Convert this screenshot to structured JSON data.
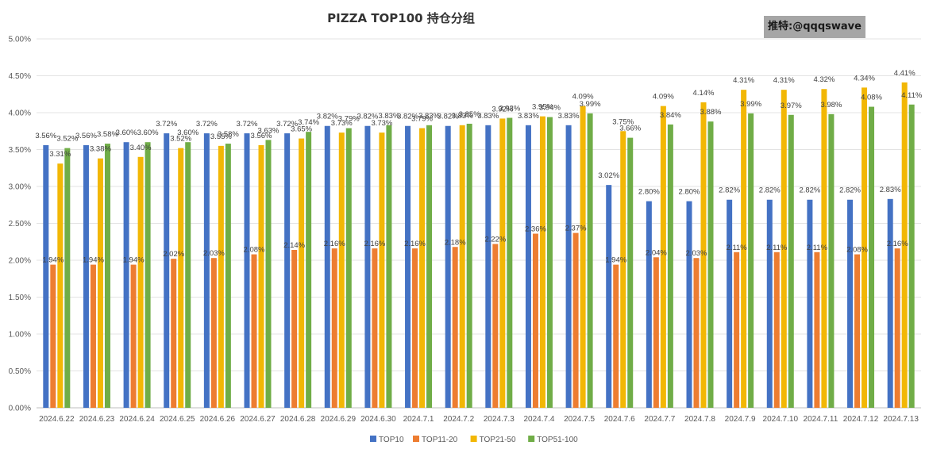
{
  "watermark": "推特:@qqqswave",
  "chart_data": {
    "type": "bar",
    "title": "PIZZA TOP100 持仓分组",
    "xlabel": "",
    "ylabel": "",
    "ylim": [
      0,
      5
    ],
    "yticks": [
      "0.00%",
      "0.50%",
      "1.00%",
      "1.50%",
      "2.00%",
      "2.50%",
      "3.00%",
      "3.50%",
      "4.00%",
      "4.50%",
      "5.00%"
    ],
    "grid": true,
    "legend_position": "bottom",
    "categories": [
      "2024.6.22",
      "2024.6.23",
      "2024.6.24",
      "2024.6.25",
      "2024.6.26",
      "2024.6.27",
      "2024.6.28",
      "2024.6.29",
      "2024.6.30",
      "2024.7.1",
      "2024.7.2",
      "2024.7.3",
      "2024.7.4",
      "2024.7.5",
      "2024.7.6",
      "2024.7.7",
      "2024.7.8",
      "2024.7.9",
      "2024.7.10",
      "2024.7.11",
      "2024.7.12",
      "2024.7.13"
    ],
    "series": [
      {
        "name": "TOP10",
        "color": "#4472C4",
        "values": [
          3.56,
          3.56,
          3.6,
          3.72,
          3.72,
          3.72,
          3.72,
          3.82,
          3.82,
          3.82,
          3.82,
          3.83,
          3.83,
          3.83,
          3.02,
          2.8,
          2.8,
          2.82,
          2.82,
          2.82,
          2.82,
          2.83
        ],
        "labels": [
          "3.56%",
          "3.56%",
          "3.60%",
          "3.72%",
          "3.72%",
          "3.72%",
          "3.72%",
          "3.82%",
          "3.82%",
          "3.82%",
          "3.82%",
          "3.83%",
          "3.83%",
          "3.83%",
          "3.02%",
          "2.80%",
          "2.80%",
          "2.82%",
          "2.82%",
          "2.82%",
          "2.82%",
          "2.83%"
        ]
      },
      {
        "name": "TOP11-20",
        "color": "#ED7D31",
        "values": [
          1.94,
          1.94,
          1.94,
          2.02,
          2.03,
          2.08,
          2.14,
          2.16,
          2.16,
          2.16,
          2.18,
          2.22,
          2.36,
          2.37,
          1.94,
          2.04,
          2.03,
          2.11,
          2.11,
          2.11,
          2.08,
          2.16
        ],
        "labels": [
          "1.94%",
          "1.94%",
          "1.94%",
          "2.02%",
          "2.03%",
          "2.08%",
          "2.14%",
          "2.16%",
          "2.16%",
          "2.16%",
          "2.18%",
          "2.22%",
          "2.36%",
          "2.37%",
          "1.94%",
          "2.04%",
          "2.03%",
          "2.11%",
          "2.11%",
          "2.11%",
          "2.08%",
          "2.16%"
        ]
      },
      {
        "name": "TOP21-50",
        "color": "#F2B705",
        "values": [
          3.31,
          3.38,
          3.4,
          3.52,
          3.55,
          3.56,
          3.65,
          3.73,
          3.73,
          3.79,
          3.83,
          3.92,
          3.95,
          4.09,
          3.75,
          4.09,
          4.14,
          4.31,
          4.31,
          4.32,
          4.34,
          4.41
        ],
        "labels": [
          "3.31%",
          "3.38%",
          "3.40%",
          "3.52%",
          "3.55%",
          "3.56%",
          "3.65%",
          "3.73%",
          "3.73%",
          "3.79%",
          "3.83%",
          "3.92%",
          "3.95%",
          "4.09%",
          "3.75%",
          "4.09%",
          "4.14%",
          "4.31%",
          "4.31%",
          "4.32%",
          "4.34%",
          "4.41%"
        ]
      },
      {
        "name": "TOP51-100",
        "color": "#70AD47",
        "values": [
          3.52,
          3.58,
          3.6,
          3.6,
          3.58,
          3.63,
          3.74,
          3.79,
          3.83,
          3.83,
          3.85,
          3.93,
          3.94,
          3.99,
          3.66,
          3.84,
          3.88,
          3.99,
          3.97,
          3.98,
          4.08,
          4.11
        ],
        "labels": [
          "3.52%",
          "3.58%",
          "3.60%",
          "3.60%",
          "3.58%",
          "3.63%",
          "3.74%",
          "3.79%",
          "3.83%",
          "3.83%",
          "3.85%",
          "3.93%",
          "3.94%",
          "3.99%",
          "3.66%",
          "3.84%",
          "3.88%",
          "3.99%",
          "3.97%",
          "3.98%",
          "4.08%",
          "4.11%"
        ]
      }
    ]
  }
}
